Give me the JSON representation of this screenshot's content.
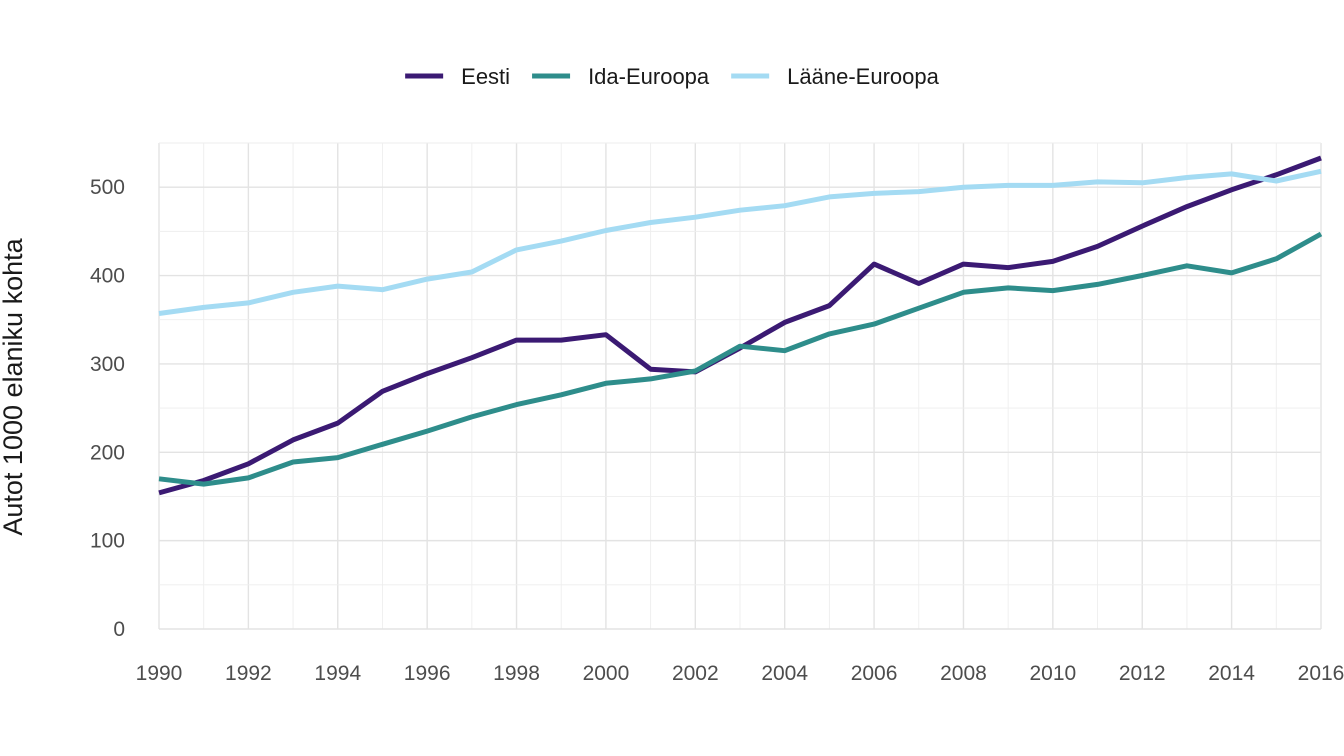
{
  "chart_data": {
    "type": "line",
    "title": "",
    "xlabel": "",
    "ylabel": "Autot 1000 elaniku kohta",
    "xlim": [
      1990,
      2016
    ],
    "ylim": [
      0,
      550
    ],
    "x_ticks": [
      1990,
      1992,
      1994,
      1996,
      1998,
      2000,
      2002,
      2004,
      2006,
      2008,
      2010,
      2012,
      2014,
      2016
    ],
    "y_ticks": [
      0,
      100,
      200,
      300,
      400,
      500
    ],
    "grid": true,
    "legend_position": "top",
    "x": [
      1990,
      1991,
      1992,
      1993,
      1994,
      1995,
      1996,
      1997,
      1998,
      1999,
      2000,
      2001,
      2002,
      2003,
      2004,
      2005,
      2006,
      2007,
      2008,
      2009,
      2010,
      2011,
      2012,
      2013,
      2014,
      2015,
      2016
    ],
    "series": [
      {
        "name": "Eesti",
        "color": "#3b1a73",
        "values": [
          154,
          168,
          187,
          214,
          233,
          269,
          289,
          307,
          327,
          327,
          333,
          294,
          291,
          318,
          347,
          366,
          413,
          391,
          413,
          409,
          416,
          433,
          456,
          478,
          497,
          514,
          533
        ]
      },
      {
        "name": "Ida-Euroopa",
        "color": "#2e8d8b",
        "values": [
          170,
          164,
          171,
          189,
          194,
          209,
          224,
          240,
          254,
          265,
          278,
          283,
          292,
          320,
          315,
          334,
          345,
          363,
          381,
          386,
          383,
          390,
          400,
          411,
          403,
          419,
          447
        ]
      },
      {
        "name": "Lääne-Euroopa",
        "color": "#a4dbf3",
        "values": [
          357,
          364,
          369,
          381,
          388,
          384,
          396,
          404,
          429,
          439,
          451,
          460,
          466,
          474,
          479,
          489,
          493,
          495,
          500,
          502,
          502,
          506,
          505,
          511,
          515,
          507,
          518
        ]
      }
    ]
  }
}
